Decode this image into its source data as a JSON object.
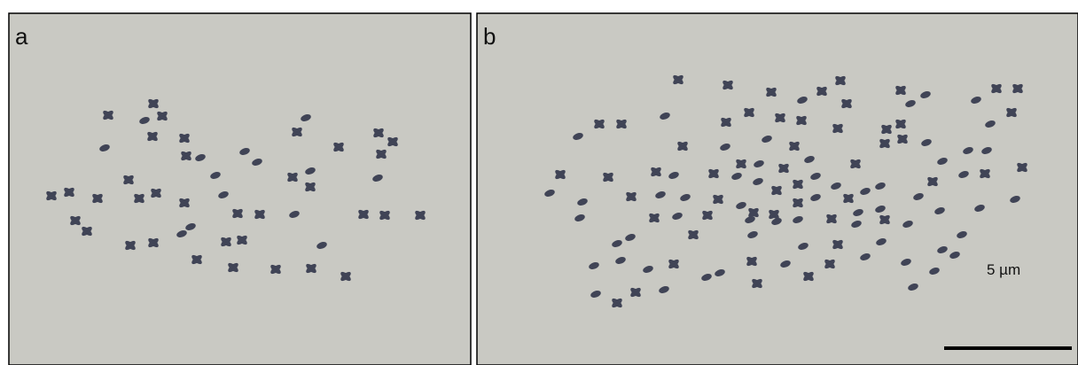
{
  "panels": [
    {
      "label": "a"
    },
    {
      "label": "b",
      "scale_bar": "5 µm"
    }
  ]
}
